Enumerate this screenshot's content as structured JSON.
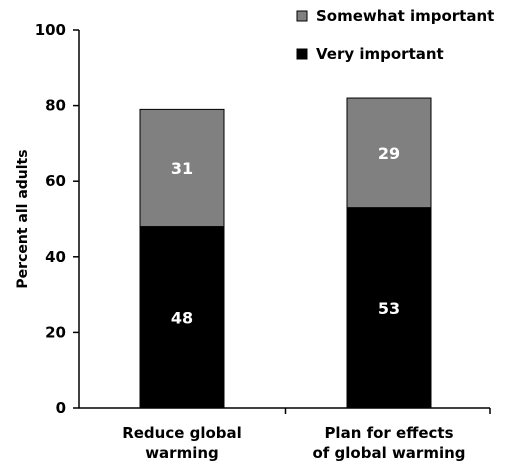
{
  "chart_data": {
    "type": "bar",
    "stacked": true,
    "title": "",
    "xlabel": "",
    "ylabel": "Percent all adults",
    "ylim": [
      0,
      100
    ],
    "yticks": [
      0,
      20,
      40,
      60,
      80,
      100
    ],
    "grid": false,
    "legend_position": "top-right",
    "categories": [
      [
        "Reduce global",
        "warming"
      ],
      [
        "Plan for effects",
        "of global warming"
      ]
    ],
    "series": [
      {
        "name": "Very important",
        "values": [
          48,
          53
        ],
        "color": "#000000"
      },
      {
        "name": "Somewhat important",
        "values": [
          31,
          29
        ],
        "color": "#808080"
      }
    ]
  }
}
